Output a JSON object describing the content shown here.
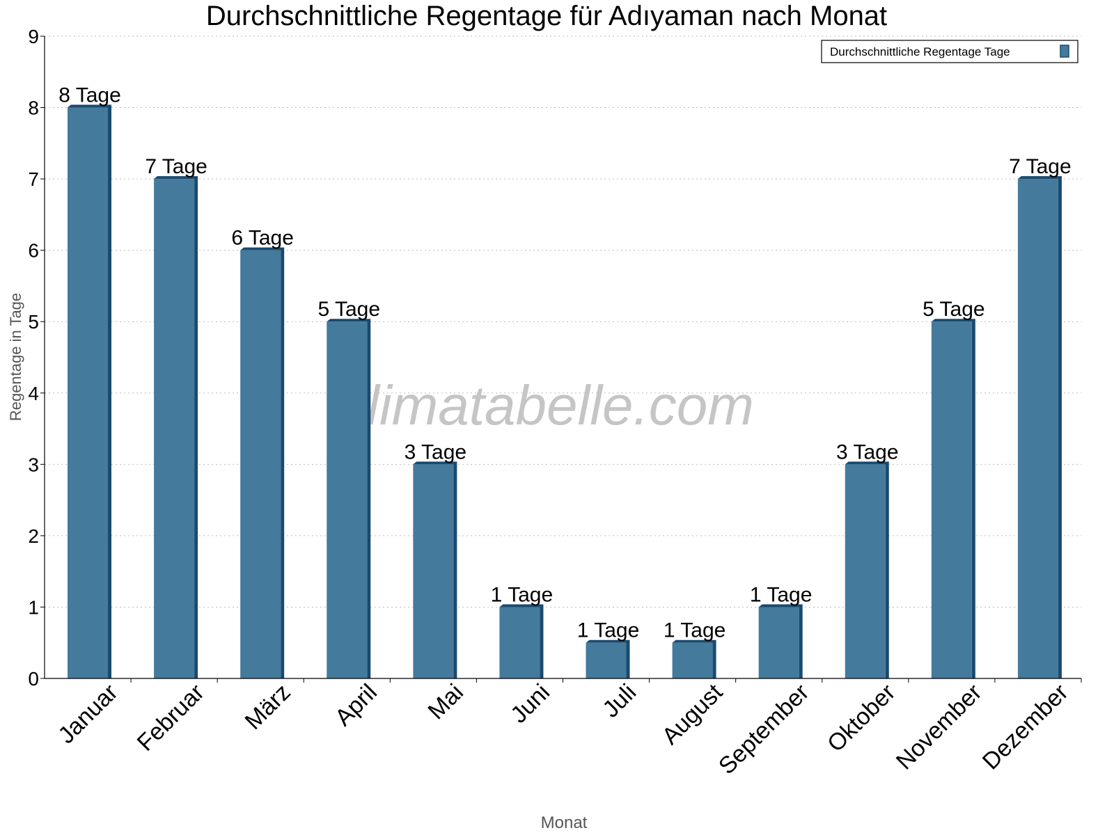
{
  "chart_data": {
    "type": "bar",
    "title": "Durchschnittliche Regentage für Adıyaman nach Monat",
    "xlabel": "Monat",
    "ylabel": "Regentage in Tage",
    "ylim": [
      0,
      9
    ],
    "yticks": [
      0,
      1,
      2,
      3,
      4,
      5,
      6,
      7,
      8,
      9
    ],
    "grid": true,
    "legend_placement": "top-right",
    "watermark": "klimatabelle.com",
    "categories": [
      "Januar",
      "Februar",
      "März",
      "April",
      "Mai",
      "Juni",
      "Juli",
      "August",
      "September",
      "Oktober",
      "November",
      "Dezember"
    ],
    "series": [
      {
        "name": "Durchschnittliche Regentage Tage",
        "values": [
          8,
          7,
          6,
          5,
          3,
          1,
          0.5,
          0.5,
          1,
          3,
          5,
          7
        ],
        "data_labels": [
          "8 Tage",
          "7 Tage",
          "6 Tage",
          "5 Tage",
          "3 Tage",
          "1 Tage",
          "1 Tage",
          "1 Tage",
          "1 Tage",
          "3 Tage",
          "5 Tage",
          "7 Tage"
        ],
        "color": "#447a9c",
        "shade_color": "#1a4a6e"
      }
    ]
  }
}
